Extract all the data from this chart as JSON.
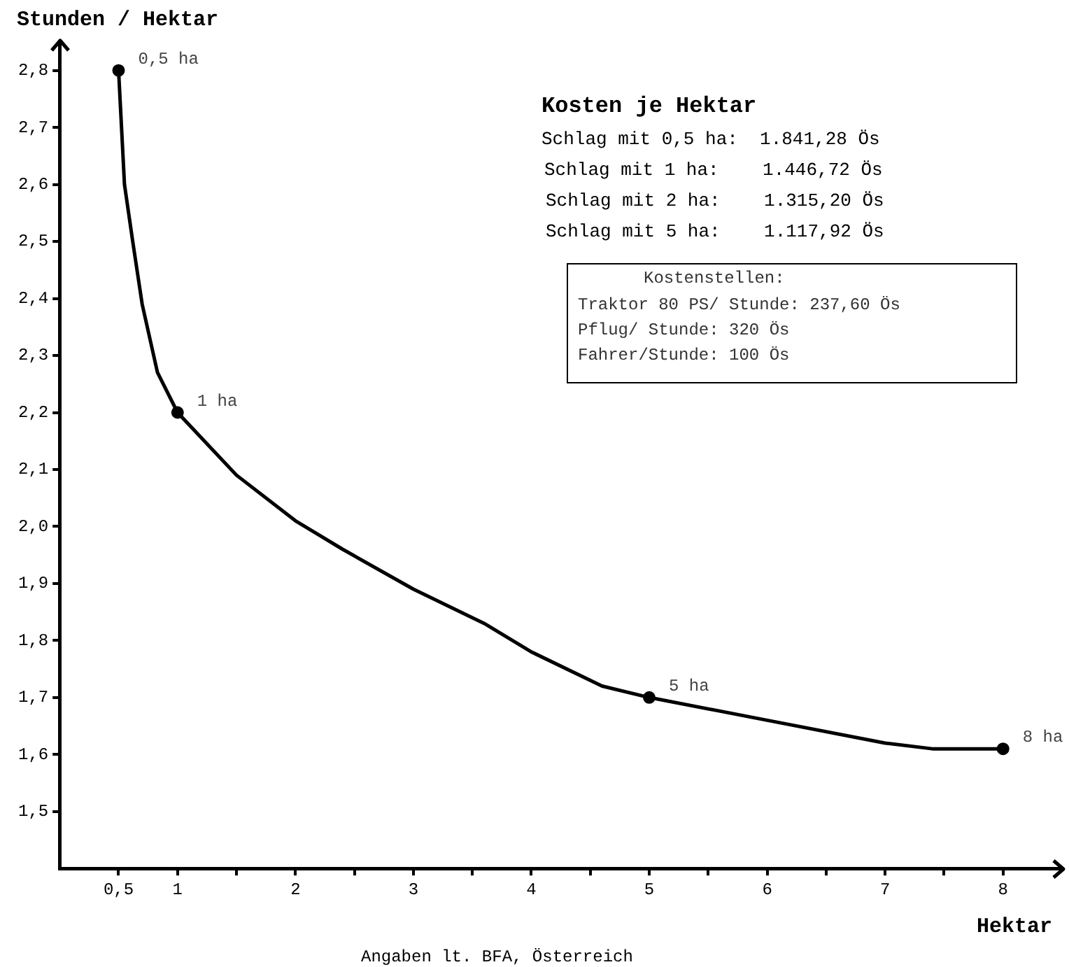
{
  "chart_data": {
    "type": "line",
    "title": "Kosten je Hektar",
    "xlabel": "Hektar",
    "ylabel": "Stunden / Hektar",
    "series": [
      {
        "type": "line",
        "color": "#000000",
        "marker": "none",
        "x": [
          0.5,
          0.55,
          0.62,
          0.7,
          0.83,
          1,
          1.5,
          2,
          2.4,
          3,
          3.6,
          4,
          4.6,
          5,
          6,
          7,
          7.4,
          8
        ],
        "values": [
          2.8,
          2.6,
          2.5,
          2.39,
          2.27,
          2.2,
          2.09,
          2.01,
          1.96,
          1.89,
          1.83,
          1.78,
          1.72,
          1.7,
          1.66,
          1.62,
          1.61,
          1.61
        ]
      },
      {
        "type": "scatter",
        "color": "#000000",
        "marker": "circle",
        "x": [
          0.5,
          1,
          5,
          8
        ],
        "values": [
          2.8,
          2.2,
          1.7,
          1.61
        ]
      }
    ],
    "xlim": [
      0,
      8.5
    ],
    "xticks": [
      {
        "value": 0.5,
        "label": "0,5"
      },
      1,
      {
        "value": 1.5,
        "label": null
      },
      2,
      {
        "value": 2.5,
        "label": null
      },
      3,
      {
        "value": 3.5,
        "label": null
      },
      4,
      {
        "value": 4.5,
        "label": null
      },
      5,
      {
        "value": 5.5,
        "label": null
      },
      6,
      {
        "value": 6.5,
        "label": null
      },
      7,
      {
        "value": 7.5,
        "label": null
      },
      8
    ],
    "ylim": [
      1.4,
      2.85
    ],
    "yticks": [
      {
        "value": 1.5,
        "label": "1,5"
      },
      {
        "value": 1.6,
        "label": "1,6"
      },
      {
        "value": 1.7,
        "label": "1,7"
      },
      {
        "value": 1.8,
        "label": "1,8"
      },
      {
        "value": 1.9,
        "label": "1,9"
      },
      {
        "value": 2.0,
        "label": "2,0"
      },
      {
        "value": 2.1,
        "label": "2,1"
      },
      {
        "value": 2.2,
        "label": "2,2"
      },
      {
        "value": 2.3,
        "label": "2,3"
      },
      {
        "value": 2.4,
        "label": "2,4"
      },
      {
        "value": 2.5,
        "label": "2,5"
      },
      {
        "value": 2.6,
        "label": "2,6"
      },
      {
        "value": 2.7,
        "label": "2,7"
      },
      {
        "value": 2.8,
        "label": "2,8"
      }
    ],
    "grid": false,
    "legend": false,
    "annotations": [
      {
        "text": "0,5 ha",
        "x": 0.5,
        "y": 2.8
      },
      {
        "text": "1 ha",
        "x": 1,
        "y": 2.2
      },
      {
        "text": "5 ha",
        "x": 5,
        "y": 1.7
      },
      {
        "text": "8 ha",
        "x": 8,
        "y": 1.61
      },
      "Schlag mit 0,5 ha:  1.841,28 Ös",
      "Schlag mit 1 ha:    1.446,72 Ös",
      "Schlag mit 2 ha:    1.315,20 Ös",
      "Schlag mit 5 ha:    1.117,92 Ös",
      "Kostenstellen:",
      "Traktor 80 PS/ Stunde: 237,60 Ös",
      "Pflug/ Stunde: 320 Ös",
      "Fahrer/Stunde: 100 Ös",
      "Angaben lt. BFA, Österreich"
    ]
  }
}
